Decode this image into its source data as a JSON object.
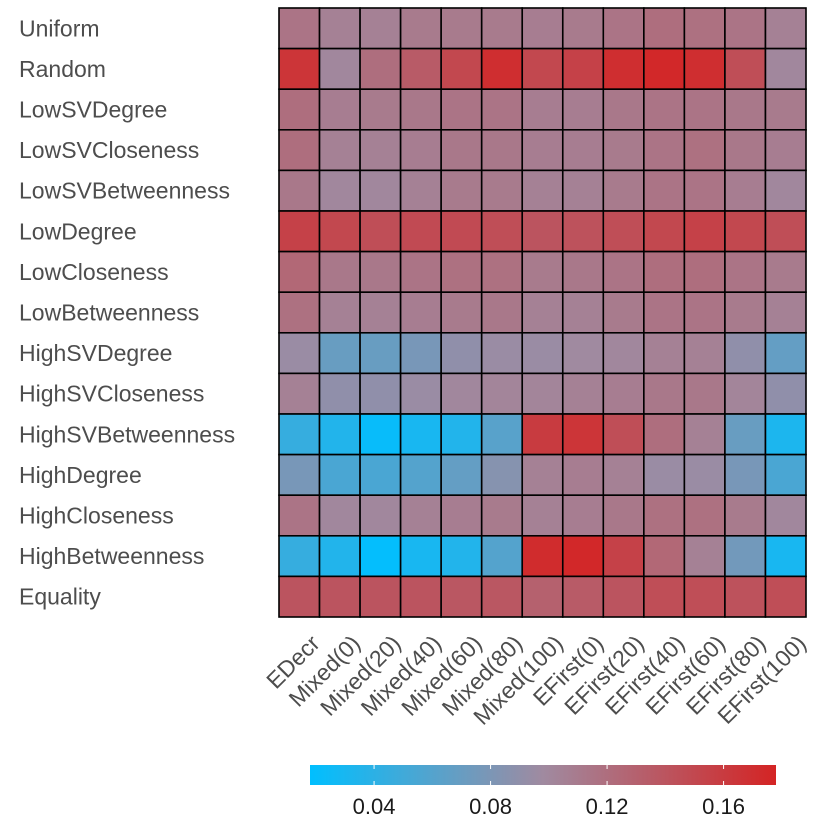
{
  "chart_data": {
    "type": "heatmap",
    "title": "",
    "xlabel": "",
    "ylabel": "",
    "rows": [
      "Uniform",
      "Random",
      "LowSVDegree",
      "LowSVCloseness",
      "LowSVBetweenness",
      "LowDegree",
      "LowCloseness",
      "LowBetweenness",
      "HighSVDegree",
      "HighSVCloseness",
      "HighSVBetweenness",
      "HighDegree",
      "HighCloseness",
      "HighBetweenness",
      "Equality"
    ],
    "columns": [
      "EDecr",
      "Mixed(0)",
      "Mixed(20)",
      "Mixed(40)",
      "Mixed(60)",
      "Mixed(80)",
      "Mixed(100)",
      "EFirst(0)",
      "EFirst(20)",
      "EFirst(40)",
      "EFirst(60)",
      "EFirst(80)",
      "EFirst(100)"
    ],
    "values": [
      [
        0.115,
        0.105,
        0.105,
        0.11,
        0.11,
        0.11,
        0.108,
        0.11,
        0.115,
        0.12,
        0.118,
        0.115,
        0.105
      ],
      [
        0.165,
        0.1,
        0.12,
        0.135,
        0.15,
        0.17,
        0.15,
        0.155,
        0.17,
        0.175,
        0.17,
        0.145,
        0.1
      ],
      [
        0.12,
        0.108,
        0.11,
        0.112,
        0.115,
        0.115,
        0.108,
        0.108,
        0.112,
        0.115,
        0.115,
        0.112,
        0.11
      ],
      [
        0.12,
        0.105,
        0.105,
        0.108,
        0.112,
        0.112,
        0.108,
        0.108,
        0.11,
        0.115,
        0.118,
        0.112,
        0.108
      ],
      [
        0.112,
        0.1,
        0.1,
        0.105,
        0.11,
        0.11,
        0.105,
        0.105,
        0.11,
        0.115,
        0.115,
        0.108,
        0.1
      ],
      [
        0.155,
        0.15,
        0.145,
        0.148,
        0.148,
        0.145,
        0.14,
        0.142,
        0.145,
        0.15,
        0.155,
        0.15,
        0.145
      ],
      [
        0.125,
        0.112,
        0.112,
        0.115,
        0.118,
        0.118,
        0.11,
        0.112,
        0.115,
        0.12,
        0.12,
        0.115,
        0.11
      ],
      [
        0.118,
        0.105,
        0.105,
        0.108,
        0.11,
        0.112,
        0.105,
        0.105,
        0.11,
        0.115,
        0.115,
        0.11,
        0.105
      ],
      [
        0.095,
        0.07,
        0.07,
        0.078,
        0.09,
        0.095,
        0.095,
        0.098,
        0.1,
        0.105,
        0.105,
        0.09,
        0.068
      ],
      [
        0.105,
        0.09,
        0.09,
        0.095,
        0.1,
        0.102,
        0.102,
        0.105,
        0.108,
        0.112,
        0.112,
        0.102,
        0.09
      ],
      [
        0.045,
        0.035,
        0.022,
        0.03,
        0.035,
        0.062,
        0.16,
        0.165,
        0.145,
        0.12,
        0.105,
        0.07,
        0.032
      ],
      [
        0.078,
        0.055,
        0.055,
        0.06,
        0.068,
        0.085,
        0.105,
        0.108,
        0.105,
        0.095,
        0.095,
        0.078,
        0.055
      ],
      [
        0.115,
        0.1,
        0.1,
        0.105,
        0.108,
        0.11,
        0.105,
        0.108,
        0.112,
        0.118,
        0.118,
        0.11,
        0.1
      ],
      [
        0.045,
        0.035,
        0.02,
        0.03,
        0.035,
        0.06,
        0.172,
        0.175,
        0.155,
        0.125,
        0.105,
        0.075,
        0.03
      ],
      [
        0.14,
        0.14,
        0.14,
        0.14,
        0.138,
        0.138,
        0.13,
        0.135,
        0.14,
        0.145,
        0.145,
        0.142,
        0.145
      ]
    ],
    "colorbar": {
      "range": [
        0.018,
        0.178
      ],
      "ticks": [
        0.04,
        0.08,
        0.12,
        0.16
      ],
      "tick_labels": [
        "0.04",
        "0.08",
        "0.12",
        "0.16"
      ],
      "colors": [
        "#00bfff",
        "#c02828"
      ],
      "mid_color": "#9e8a9e"
    },
    "legend_position": "bottom"
  }
}
